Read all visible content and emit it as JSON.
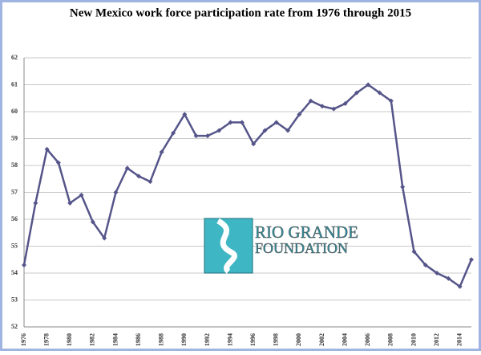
{
  "chart_data": {
    "type": "line",
    "title": "New Mexico work force participation rate from 1976 through 2015",
    "categories": [
      "1976",
      null,
      "1978",
      null,
      "1980",
      null,
      "1982",
      null,
      "1984",
      null,
      "1986",
      null,
      "1988",
      null,
      "1990",
      null,
      "1992",
      null,
      "1994",
      null,
      "1996",
      null,
      "1998",
      null,
      "2000",
      null,
      "2002",
      null,
      "2004",
      null,
      "2006",
      null,
      "2008",
      null,
      "2010",
      null,
      "2012",
      null,
      "2014",
      null
    ],
    "series": [
      {
        "name": "Participation rate",
        "color": "#55558a",
        "values": [
          54.3,
          56.6,
          58.6,
          58.1,
          56.6,
          56.9,
          55.9,
          55.3,
          57.0,
          57.9,
          57.6,
          57.4,
          58.5,
          59.2,
          59.9,
          59.1,
          59.1,
          59.3,
          59.6,
          59.6,
          58.8,
          59.3,
          59.6,
          59.3,
          59.9,
          60.4,
          60.2,
          60.1,
          60.3,
          60.7,
          61.0,
          60.7,
          60.4,
          57.2,
          54.8,
          54.3,
          54.0,
          53.8,
          53.5,
          54.5
        ]
      }
    ],
    "ylim": [
      52,
      62
    ],
    "yticks": [
      52,
      53,
      54,
      55,
      56,
      57,
      58,
      59,
      60,
      61,
      62
    ],
    "grid": true
  },
  "logo": {
    "line1": "RIO GRANDE",
    "line2": "FOUNDATION"
  }
}
